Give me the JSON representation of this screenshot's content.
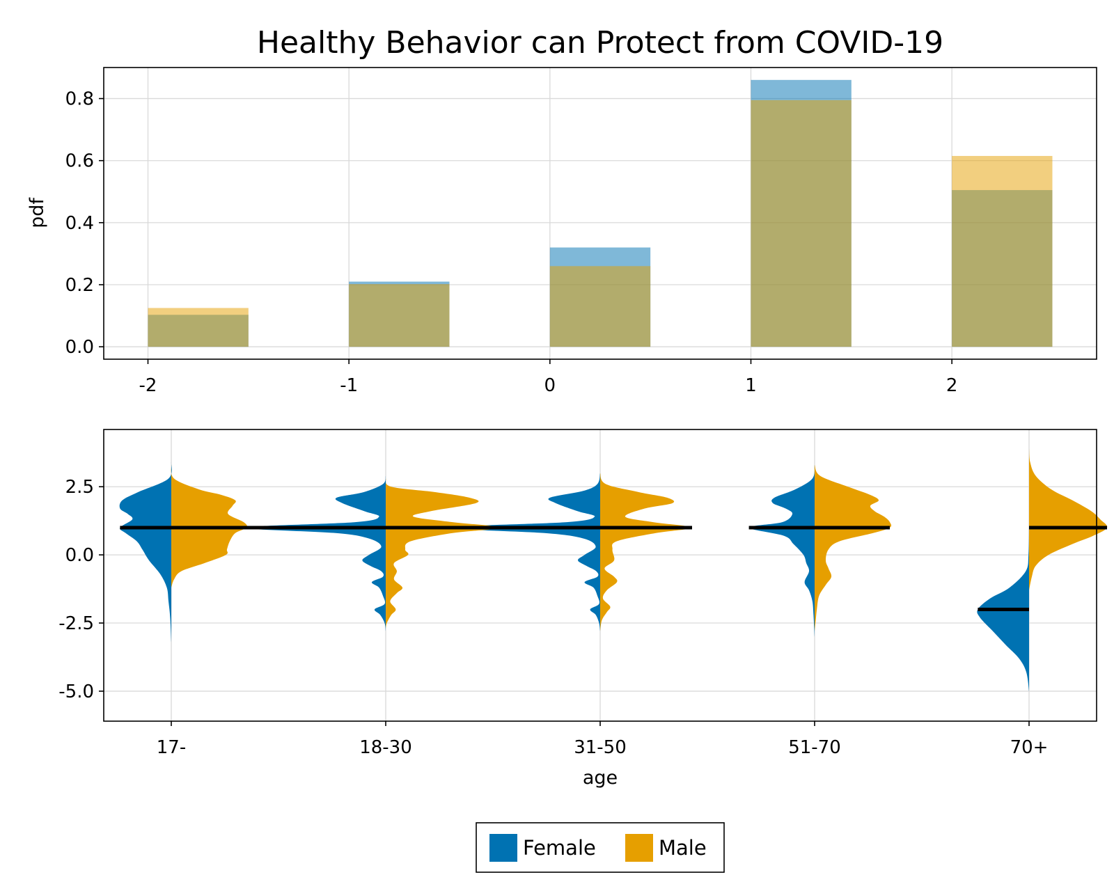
{
  "title": "Healthy Behavior can Protect from COVID-19",
  "colors": {
    "female": "#0072b2",
    "male": "#e69f00",
    "median": "#000000"
  },
  "legend": {
    "placement": "bottom-center",
    "items": [
      "Female",
      "Male"
    ]
  },
  "chart_data": [
    {
      "type": "bar",
      "subtype": "overlaid-histogram",
      "xlabel": "",
      "ylabel": "pdf",
      "x_ticks": [
        "-2",
        "-1",
        "0",
        "1",
        "2"
      ],
      "y_ticks": [
        "0.0",
        "0.2",
        "0.4",
        "0.6",
        "0.8"
      ],
      "xlim": [
        -2.22,
        2.72
      ],
      "ylim": [
        -0.04,
        0.9
      ],
      "grid": true,
      "bar_width": 0.5,
      "x": [
        -2,
        -1,
        0,
        1,
        2
      ],
      "series": [
        {
          "name": "Female",
          "color": "#0072b2",
          "values": [
            0.103,
            0.21,
            0.32,
            0.86,
            0.505
          ]
        },
        {
          "name": "Male",
          "color": "#e69f00",
          "values": [
            0.125,
            0.202,
            0.26,
            0.795,
            0.615
          ]
        }
      ]
    },
    {
      "type": "violin",
      "subtype": "split-violin",
      "xlabel": "age",
      "ylabel": "",
      "categories": [
        "17-",
        "18-30",
        "31-50",
        "51-70",
        "70+"
      ],
      "y_ticks": [
        "2.5",
        "0.0",
        "-2.5",
        "-5.0"
      ],
      "ylim": [
        -6.1,
        4.6
      ],
      "grid": true,
      "series": [
        {
          "name": "Female",
          "side": "left",
          "color": "#0072b2",
          "medians": [
            1,
            1,
            1,
            1,
            -2
          ],
          "densities": [
            [
              [
                3.4,
                0
              ],
              [
                2.8,
                0.05
              ],
              [
                2.3,
                0.6
              ],
              [
                2.0,
                0.88
              ],
              [
                1.7,
                0.92
              ],
              [
                1.5,
                0.78
              ],
              [
                1.3,
                0.7
              ],
              [
                1.0,
                0.92
              ],
              [
                0.8,
                0.82
              ],
              [
                0.5,
                0.62
              ],
              [
                0.2,
                0.52
              ],
              [
                -0.2,
                0.4
              ],
              [
                -0.7,
                0.2
              ],
              [
                -1.2,
                0.08
              ],
              [
                -1.7,
                0.05
              ],
              [
                -2.3,
                0.02
              ],
              [
                -3.2,
                0
              ]
            ],
            [
              [
                2.9,
                0
              ],
              [
                2.6,
                0.05
              ],
              [
                2.3,
                0.4
              ],
              [
                2.1,
                0.88
              ],
              [
                1.9,
                0.78
              ],
              [
                1.6,
                0.38
              ],
              [
                1.4,
                0.12
              ],
              [
                1.2,
                0.55
              ],
              [
                1.0,
                2.6
              ],
              [
                0.8,
                0.9
              ],
              [
                0.6,
                0.3
              ],
              [
                0.3,
                0.08
              ],
              [
                0.0,
                0.3
              ],
              [
                -0.2,
                0.42
              ],
              [
                -0.4,
                0.28
              ],
              [
                -0.6,
                0.08
              ],
              [
                -0.8,
                0.05
              ],
              [
                -1.0,
                0.25
              ],
              [
                -1.2,
                0.12
              ],
              [
                -1.5,
                0.05
              ],
              [
                -1.8,
                0.02
              ],
              [
                -2.0,
                0.2
              ],
              [
                -2.2,
                0.1
              ],
              [
                -2.5,
                0.02
              ],
              [
                -2.8,
                0
              ]
            ],
            [
              [
                3.0,
                0
              ],
              [
                2.6,
                0.05
              ],
              [
                2.35,
                0.3
              ],
              [
                2.1,
                0.9
              ],
              [
                1.9,
                0.8
              ],
              [
                1.6,
                0.4
              ],
              [
                1.4,
                0.1
              ],
              [
                1.2,
                0.6
              ],
              [
                1.0,
                2.8
              ],
              [
                0.8,
                1.0
              ],
              [
                0.6,
                0.3
              ],
              [
                0.3,
                0.08
              ],
              [
                0.0,
                0.28
              ],
              [
                -0.2,
                0.4
              ],
              [
                -0.4,
                0.25
              ],
              [
                -0.6,
                0.07
              ],
              [
                -0.8,
                0.05
              ],
              [
                -1.0,
                0.28
              ],
              [
                -1.2,
                0.12
              ],
              [
                -1.5,
                0.05
              ],
              [
                -1.8,
                0.02
              ],
              [
                -2.0,
                0.18
              ],
              [
                -2.2,
                0.08
              ],
              [
                -2.5,
                0.02
              ],
              [
                -2.8,
                0
              ]
            ],
            [
              [
                3.3,
                0
              ],
              [
                2.8,
                0.04
              ],
              [
                2.4,
                0.35
              ],
              [
                2.1,
                0.72
              ],
              [
                1.9,
                0.75
              ],
              [
                1.7,
                0.52
              ],
              [
                1.5,
                0.4
              ],
              [
                1.2,
                0.58
              ],
              [
                1.0,
                1.18
              ],
              [
                0.7,
                0.55
              ],
              [
                0.4,
                0.38
              ],
              [
                0.0,
                0.2
              ],
              [
                -0.3,
                0.15
              ],
              [
                -0.6,
                0.1
              ],
              [
                -1.0,
                0.18
              ],
              [
                -1.3,
                0.1
              ],
              [
                -1.7,
                0.04
              ],
              [
                -2.2,
                0.02
              ],
              [
                -3.0,
                0
              ]
            ],
            [
              [
                1.1,
                0
              ],
              [
                0.0,
                0.01
              ],
              [
                -0.6,
                0.06
              ],
              [
                -1.2,
                0.35
              ],
              [
                -1.6,
                0.7
              ],
              [
                -2.0,
                0.92
              ],
              [
                -2.3,
                0.88
              ],
              [
                -2.8,
                0.65
              ],
              [
                -3.3,
                0.42
              ],
              [
                -3.8,
                0.18
              ],
              [
                -4.3,
                0.05
              ],
              [
                -5.0,
                0
              ]
            ]
          ]
        },
        {
          "name": "Male",
          "side": "right",
          "color": "#e69f00",
          "medians": [
            1,
            1,
            1,
            1,
            1
          ],
          "densities": [
            [
              [
                3.3,
                0
              ],
              [
                2.8,
                0.05
              ],
              [
                2.4,
                0.5
              ],
              [
                2.2,
                0.9
              ],
              [
                2.0,
                1.15
              ],
              [
                1.8,
                1.1
              ],
              [
                1.5,
                1.02
              ],
              [
                1.2,
                1.3
              ],
              [
                1.0,
                1.35
              ],
              [
                0.8,
                1.15
              ],
              [
                0.5,
                1.05
              ],
              [
                0.2,
                1.0
              ],
              [
                0.0,
                0.98
              ],
              [
                -0.3,
                0.6
              ],
              [
                -0.6,
                0.18
              ],
              [
                -0.9,
                0.05
              ],
              [
                -1.2,
                0
              ]
            ],
            [
              [
                2.8,
                0
              ],
              [
                2.5,
                0.1
              ],
              [
                2.3,
                0.9
              ],
              [
                2.1,
                1.5
              ],
              [
                1.9,
                1.62
              ],
              [
                1.6,
                0.8
              ],
              [
                1.4,
                0.5
              ],
              [
                1.2,
                1.2
              ],
              [
                1.0,
                2.05
              ],
              [
                0.8,
                1.2
              ],
              [
                0.5,
                0.45
              ],
              [
                0.2,
                0.35
              ],
              [
                0.0,
                0.4
              ],
              [
                -0.3,
                0.15
              ],
              [
                -0.6,
                0.2
              ],
              [
                -0.9,
                0.15
              ],
              [
                -1.2,
                0.3
              ],
              [
                -1.4,
                0.2
              ],
              [
                -1.7,
                0.08
              ],
              [
                -2.0,
                0.18
              ],
              [
                -2.2,
                0.1
              ],
              [
                -2.5,
                0.02
              ],
              [
                -2.7,
                0
              ]
            ],
            [
              [
                3.0,
                0
              ],
              [
                2.6,
                0.1
              ],
              [
                2.3,
                0.7
              ],
              [
                2.1,
                1.2
              ],
              [
                1.9,
                1.3
              ],
              [
                1.7,
                0.8
              ],
              [
                1.4,
                0.45
              ],
              [
                1.2,
                0.95
              ],
              [
                1.0,
                1.65
              ],
              [
                0.8,
                1.0
              ],
              [
                0.5,
                0.3
              ],
              [
                0.2,
                0.22
              ],
              [
                -0.2,
                0.25
              ],
              [
                -0.5,
                0.08
              ],
              [
                -0.8,
                0.25
              ],
              [
                -1.0,
                0.3
              ],
              [
                -1.3,
                0.12
              ],
              [
                -1.6,
                0.05
              ],
              [
                -1.9,
                0.18
              ],
              [
                -2.1,
                0.12
              ],
              [
                -2.4,
                0.03
              ],
              [
                -2.8,
                0
              ]
            ],
            [
              [
                3.3,
                0
              ],
              [
                2.9,
                0.1
              ],
              [
                2.5,
                0.6
              ],
              [
                2.2,
                1.0
              ],
              [
                2.0,
                1.15
              ],
              [
                1.8,
                1.0
              ],
              [
                1.6,
                1.08
              ],
              [
                1.4,
                1.25
              ],
              [
                1.2,
                1.35
              ],
              [
                1.0,
                1.35
              ],
              [
                0.8,
                1.05
              ],
              [
                0.5,
                0.45
              ],
              [
                0.2,
                0.25
              ],
              [
                -0.2,
                0.2
              ],
              [
                -0.5,
                0.25
              ],
              [
                -0.8,
                0.3
              ],
              [
                -1.1,
                0.2
              ],
              [
                -1.5,
                0.08
              ],
              [
                -2.0,
                0.04
              ],
              [
                -2.4,
                0.02
              ],
              [
                -2.8,
                0
              ]
            ],
            [
              [
                3.9,
                0
              ],
              [
                3.4,
                0.02
              ],
              [
                2.9,
                0.12
              ],
              [
                2.4,
                0.4
              ],
              [
                2.0,
                0.78
              ],
              [
                1.6,
                1.12
              ],
              [
                1.3,
                1.28
              ],
              [
                1.0,
                1.4
              ],
              [
                0.7,
                1.15
              ],
              [
                0.4,
                0.78
              ],
              [
                0.0,
                0.35
              ],
              [
                -0.4,
                0.12
              ],
              [
                -0.8,
                0.05
              ],
              [
                -1.3,
                0
              ]
            ]
          ]
        }
      ]
    }
  ]
}
